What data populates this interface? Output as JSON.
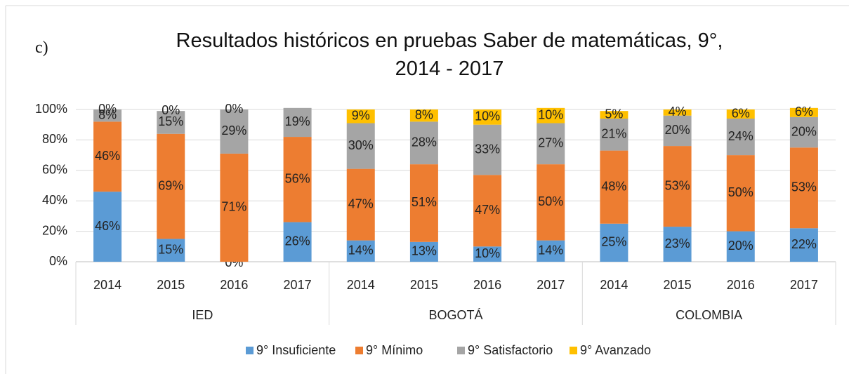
{
  "chart_data": {
    "type": "stacked_bar",
    "annotation": "c)",
    "title": "Resultados históricos en pruebas Saber de matemáticas, 9°,\n2014 - 2017",
    "categories": [
      "2014",
      "2015",
      "2016",
      "2017",
      "2014",
      "2015",
      "2016",
      "2017",
      "2014",
      "2015",
      "2016",
      "2017"
    ],
    "groups": [
      "IED",
      "BOGOTÁ",
      "COLOMBIA"
    ],
    "series": [
      {
        "name": "9° Insuficiente",
        "color": "#5b9bd5",
        "values": [
          46,
          15,
          0,
          26,
          14,
          13,
          10,
          14,
          25,
          23,
          20,
          22
        ],
        "value_labels": [
          "46%",
          "15%",
          "0%",
          "26%",
          "14%",
          "13%",
          "10%",
          "14%",
          "25%",
          "23%",
          "20%",
          "22%"
        ]
      },
      {
        "name": "9° Mínimo",
        "color": "#ed7d31",
        "values": [
          46,
          69,
          71,
          56,
          47,
          51,
          47,
          50,
          48,
          53,
          50,
          53
        ],
        "value_labels": [
          "46%",
          "69%",
          "71%",
          "56%",
          "47%",
          "51%",
          "47%",
          "50%",
          "48%",
          "53%",
          "50%",
          "53%"
        ]
      },
      {
        "name": "9° Satisfactorio",
        "color": "#a5a5a5",
        "values": [
          8,
          15,
          29,
          19,
          30,
          28,
          33,
          27,
          21,
          20,
          24,
          20
        ],
        "value_labels": [
          "8%",
          "15%",
          "29%",
          "19%",
          "30%",
          "28%",
          "33%",
          "27%",
          "21%",
          "20%",
          "24%",
          "20%"
        ]
      },
      {
        "name": "9° Avanzado",
        "color": "#ffc000",
        "values": [
          0,
          0,
          0,
          null,
          9,
          8,
          10,
          10,
          5,
          4,
          6,
          6
        ],
        "value_labels": [
          "0%",
          "0%",
          "0%",
          null,
          "9%",
          "8%",
          "10%",
          "10%",
          "5%",
          "4%",
          "6%",
          "6%"
        ]
      }
    ],
    "ylim": [
      0,
      100
    ],
    "yticks": [
      {
        "value": 0,
        "label": "0%"
      },
      {
        "value": 20,
        "label": "20%"
      },
      {
        "value": 40,
        "label": "40%"
      },
      {
        "value": 60,
        "label": "60%"
      },
      {
        "value": 80,
        "label": "80%"
      },
      {
        "value": 100,
        "label": "100%"
      }
    ],
    "grid": true,
    "legend": "bottom"
  }
}
